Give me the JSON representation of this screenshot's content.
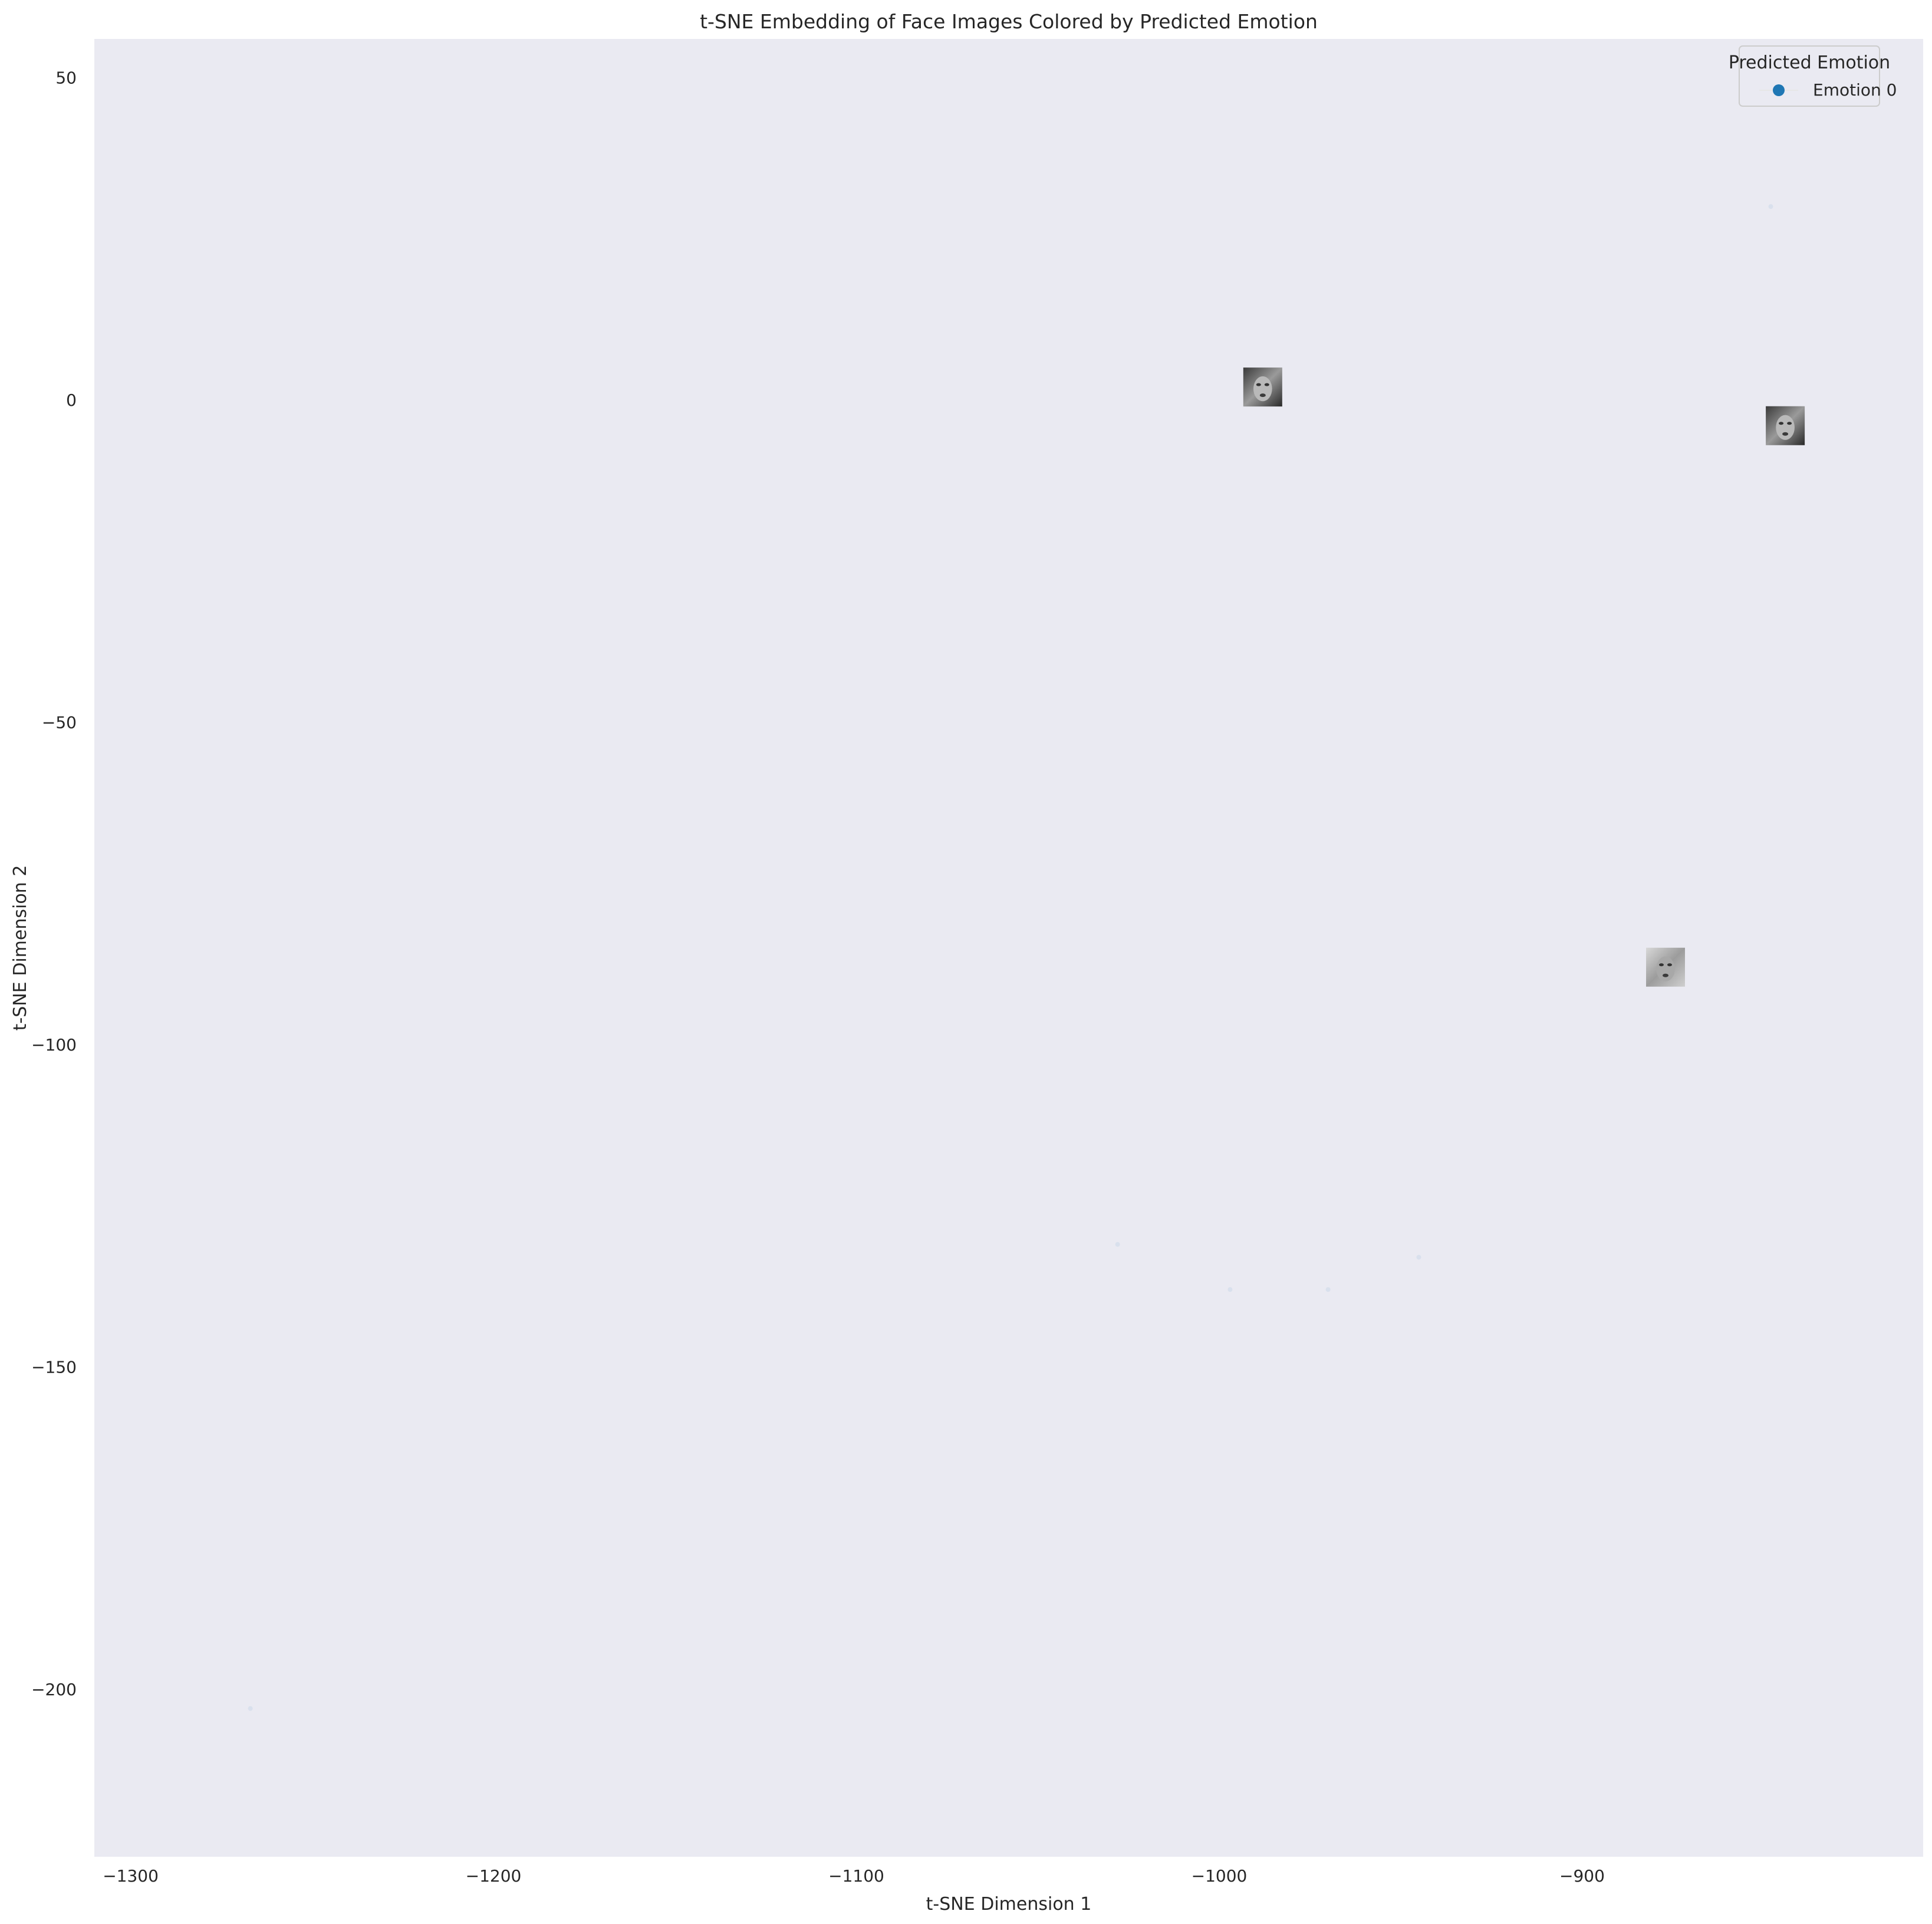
{
  "chart_data": {
    "type": "scatter",
    "title": "t-SNE Embedding of Face Images Colored by Predicted Emotion",
    "xlabel": "t-SNE Dimension 1",
    "ylabel": "t-SNE Dimension 2",
    "xlim": [
      -1310,
      -806
    ],
    "ylim": [
      -226,
      56
    ],
    "x_ticks": [
      -1300,
      -1200,
      -1100,
      -1000,
      -900
    ],
    "y_ticks": [
      50,
      0,
      -50,
      -100,
      -150,
      -200
    ],
    "x_tick_labels": [
      "−1300",
      "−1200",
      "−1100",
      "−1000",
      "−900"
    ],
    "y_tick_labels": [
      "50",
      "0",
      "−50",
      "−100",
      "−150",
      "−200"
    ],
    "grid": false,
    "legend": {
      "title": "Predicted Emotion",
      "placement": "top-right",
      "entries": [
        {
          "label": "Emotion 0",
          "color": "#1f77b4"
        }
      ]
    },
    "series": [
      {
        "name": "Emotion 0",
        "color": "#1f77b4",
        "points": [
          {
            "x": -848,
            "y": 30
          },
          {
            "x": -988,
            "y": 2
          },
          {
            "x": -844,
            "y": -4
          },
          {
            "x": -877,
            "y": -88
          },
          {
            "x": -1028,
            "y": -131
          },
          {
            "x": -997,
            "y": -138
          },
          {
            "x": -970,
            "y": -138
          },
          {
            "x": -945,
            "y": -133
          },
          {
            "x": -1267,
            "y": -203
          }
        ]
      }
    ],
    "face_thumbnails": [
      {
        "x": -988,
        "y": 2,
        "icon": "face-thumbnail-dark"
      },
      {
        "x": -844,
        "y": -4,
        "icon": "face-thumbnail-dark"
      },
      {
        "x": -877,
        "y": -88,
        "icon": "face-thumbnail-light"
      }
    ]
  }
}
